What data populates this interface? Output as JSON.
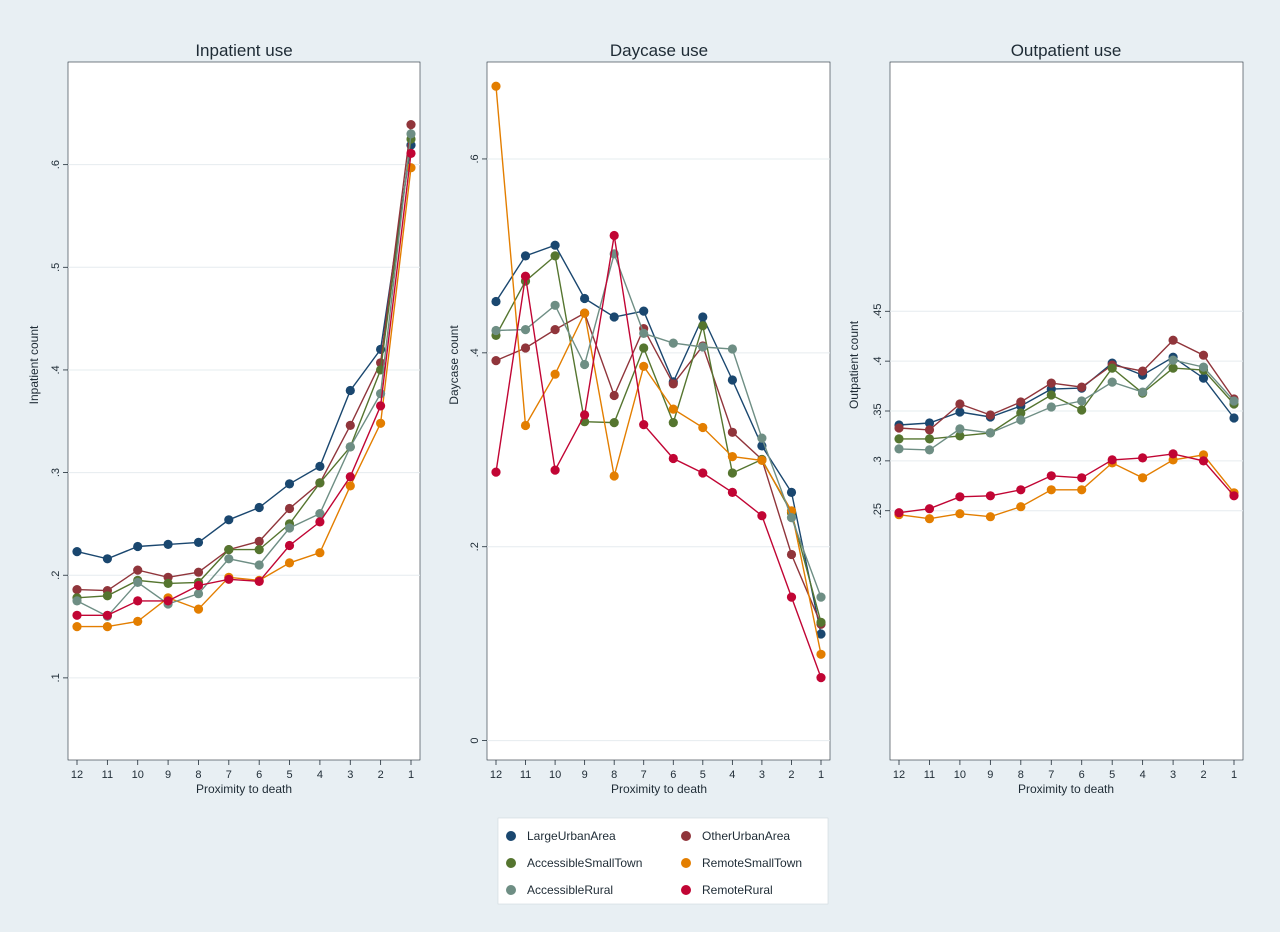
{
  "colors": {
    "LargeUrbanArea": "#1a476f",
    "OtherUrbanArea": "#90353b",
    "AccessibleSmallTown": "#55752f",
    "RemoteSmallTown": "#e37e00",
    "AccessibleRural": "#6e8e84",
    "RemoteRural": "#c10534"
  },
  "legend": [
    {
      "key": "LargeUrbanArea",
      "label": "LargeUrbanArea"
    },
    {
      "key": "OtherUrbanArea",
      "label": "OtherUrbanArea"
    },
    {
      "key": "AccessibleSmallTown",
      "label": "AccessibleSmallTown"
    },
    {
      "key": "RemoteSmallTown",
      "label": "RemoteSmallTown"
    },
    {
      "key": "AccessibleRural",
      "label": "AccessibleRural"
    },
    {
      "key": "RemoteRural",
      "label": "RemoteRural"
    }
  ],
  "chart_data": [
    {
      "type": "line",
      "title": "Inpatient use",
      "xlabel": "Proximity to death",
      "ylabel": "Inpatient count",
      "x": [
        12,
        11,
        10,
        9,
        8,
        7,
        6,
        5,
        4,
        3,
        2,
        1
      ],
      "xticks": [
        "12",
        "11",
        "10",
        "9",
        "8",
        "7",
        "6",
        "5",
        "4",
        "3",
        "2",
        "1"
      ],
      "ylim": [
        0.02,
        0.7
      ],
      "yticks": [
        0.1,
        0.2,
        0.3,
        0.4,
        0.5,
        0.6
      ],
      "yticklabels": [
        ".1",
        ".2",
        ".3",
        ".4",
        ".5",
        ".6"
      ],
      "grid": true,
      "series": [
        {
          "name": "LargeUrbanArea",
          "values": [
            0.223,
            0.216,
            0.228,
            0.23,
            0.232,
            0.254,
            0.266,
            0.289,
            0.306,
            0.38,
            0.42,
            0.619
          ]
        },
        {
          "name": "OtherUrbanArea",
          "values": [
            0.186,
            0.185,
            0.205,
            0.198,
            0.203,
            0.225,
            0.233,
            0.265,
            0.29,
            0.346,
            0.407,
            0.639
          ]
        },
        {
          "name": "AccessibleSmallTown",
          "values": [
            0.178,
            0.18,
            0.195,
            0.192,
            0.193,
            0.225,
            0.225,
            0.25,
            0.29,
            0.325,
            0.4,
            0.625
          ]
        },
        {
          "name": "RemoteSmallTown",
          "values": [
            0.15,
            0.15,
            0.155,
            0.178,
            0.167,
            0.198,
            0.195,
            0.212,
            0.222,
            0.287,
            0.348,
            0.597
          ]
        },
        {
          "name": "AccessibleRural",
          "values": [
            0.175,
            0.16,
            0.193,
            0.172,
            0.182,
            0.216,
            0.21,
            0.246,
            0.26,
            0.325,
            0.377,
            0.63
          ]
        },
        {
          "name": "RemoteRural",
          "values": [
            0.161,
            0.161,
            0.175,
            0.175,
            0.19,
            0.196,
            0.194,
            0.229,
            0.252,
            0.296,
            0.365,
            0.611
          ]
        }
      ]
    },
    {
      "type": "line",
      "title": "Daycase use",
      "xlabel": "Proximity to death",
      "ylabel": "Daycase count",
      "x": [
        12,
        11,
        10,
        9,
        8,
        7,
        6,
        5,
        4,
        3,
        2,
        1
      ],
      "xticks": [
        "12",
        "11",
        "10",
        "9",
        "8",
        "7",
        "6",
        "5",
        "4",
        "3",
        "2",
        "1"
      ],
      "ylim": [
        -0.02,
        0.7
      ],
      "yticks": [
        0,
        0.2,
        0.4,
        0.6
      ],
      "yticklabels": [
        "0",
        ".2",
        ".4",
        ".6"
      ],
      "grid": true,
      "series": [
        {
          "name": "LargeUrbanArea",
          "values": [
            0.453,
            0.5,
            0.511,
            0.456,
            0.437,
            0.443,
            0.37,
            0.437,
            0.372,
            0.304,
            0.256,
            0.11
          ]
        },
        {
          "name": "OtherUrbanArea",
          "values": [
            0.392,
            0.405,
            0.424,
            0.441,
            0.356,
            0.425,
            0.368,
            0.407,
            0.318,
            0.29,
            0.192,
            0.12
          ]
        },
        {
          "name": "AccessibleSmallTown",
          "values": [
            0.418,
            0.474,
            0.5,
            0.329,
            0.328,
            0.405,
            0.328,
            0.428,
            0.276,
            0.29,
            0.235,
            0.122
          ]
        },
        {
          "name": "RemoteSmallTown",
          "values": [
            0.675,
            0.325,
            0.378,
            0.441,
            0.273,
            0.386,
            0.342,
            0.323,
            0.293,
            0.289,
            0.237,
            0.089
          ]
        },
        {
          "name": "AccessibleRural",
          "values": [
            0.423,
            0.424,
            0.449,
            0.388,
            0.502,
            0.42,
            0.41,
            0.406,
            0.404,
            0.312,
            0.23,
            0.148
          ]
        },
        {
          "name": "RemoteRural",
          "values": [
            0.277,
            0.479,
            0.279,
            0.336,
            0.521,
            0.326,
            0.291,
            0.276,
            0.256,
            0.232,
            0.148,
            0.065
          ]
        }
      ]
    },
    {
      "type": "line",
      "title": "Outpatient use",
      "xlabel": "Proximity to death",
      "ylabel": "Outpatient count",
      "x": [
        12,
        11,
        10,
        9,
        8,
        7,
        6,
        5,
        4,
        3,
        2,
        1
      ],
      "xticks": [
        "12",
        "11",
        "10",
        "9",
        "8",
        "7",
        "6",
        "5",
        "4",
        "3",
        "2",
        "1"
      ],
      "ylim": [
        0.0,
        0.7
      ],
      "yticks": [
        0.25,
        0.3,
        0.35,
        0.4,
        0.45
      ],
      "yticklabels": [
        ".25",
        ".3",
        ".35",
        ".4",
        ".45"
      ],
      "grid": true,
      "series": [
        {
          "name": "LargeUrbanArea",
          "values": [
            0.336,
            0.338,
            0.349,
            0.344,
            0.355,
            0.372,
            0.373,
            0.398,
            0.386,
            0.404,
            0.383,
            0.343
          ]
        },
        {
          "name": "OtherUrbanArea",
          "values": [
            0.333,
            0.331,
            0.357,
            0.346,
            0.359,
            0.378,
            0.374,
            0.396,
            0.39,
            0.421,
            0.406,
            0.362
          ]
        },
        {
          "name": "AccessibleSmallTown",
          "values": [
            0.322,
            0.322,
            0.325,
            0.328,
            0.348,
            0.366,
            0.351,
            0.393,
            0.368,
            0.393,
            0.391,
            0.357
          ]
        },
        {
          "name": "RemoteSmallTown",
          "values": [
            0.246,
            0.242,
            0.247,
            0.244,
            0.254,
            0.271,
            0.271,
            0.298,
            0.283,
            0.301,
            0.306,
            0.268
          ]
        },
        {
          "name": "AccessibleRural",
          "values": [
            0.312,
            0.311,
            0.332,
            0.328,
            0.341,
            0.354,
            0.36,
            0.379,
            0.369,
            0.401,
            0.394,
            0.36
          ]
        },
        {
          "name": "RemoteRural",
          "values": [
            0.248,
            0.252,
            0.264,
            0.265,
            0.271,
            0.285,
            0.283,
            0.301,
            0.303,
            0.307,
            0.3,
            0.265
          ]
        }
      ]
    }
  ]
}
